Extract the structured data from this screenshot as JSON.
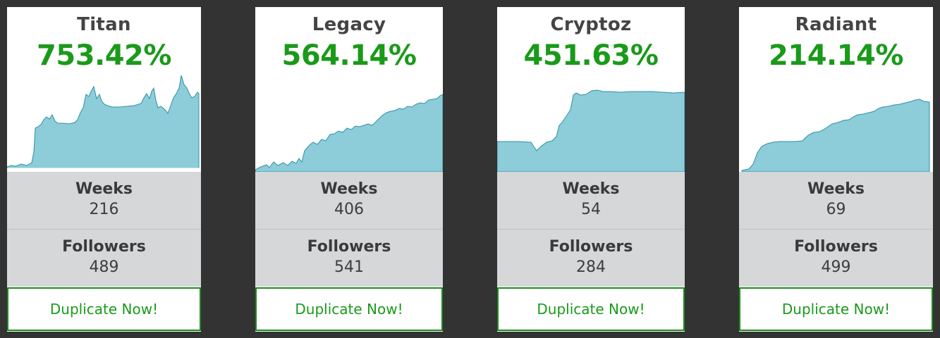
{
  "strategies": [
    {
      "name": "Titan",
      "return": "753.42%",
      "weeks_label": "Weeks",
      "weeks": "216",
      "followers_label": "Followers",
      "followers": "489",
      "button_label": "Duplicate Now!"
    },
    {
      "name": "Legacy",
      "return": "564.14%",
      "weeks_label": "Weeks",
      "weeks": "406",
      "followers_label": "Followers",
      "followers": "541",
      "button_label": "Duplicate Now!"
    },
    {
      "name": "Cryptoz",
      "return": "451.63%",
      "weeks_label": "Weeks",
      "weeks": "54",
      "followers_label": "Followers",
      "followers": "284",
      "button_label": "Duplicate Now!"
    },
    {
      "name": "Radiant",
      "return": "214.14%",
      "weeks_label": "Weeks",
      "weeks": "69",
      "followers_label": "Followers",
      "followers": "499",
      "button_label": "Duplicate Now!"
    }
  ],
  "colors": {
    "background": "#333333",
    "return_green": "#1a9a1a",
    "stat_bg": "#d6d7d9",
    "chart_fill": "#8ccdd9",
    "chart_line": "#2f8fa5"
  }
}
